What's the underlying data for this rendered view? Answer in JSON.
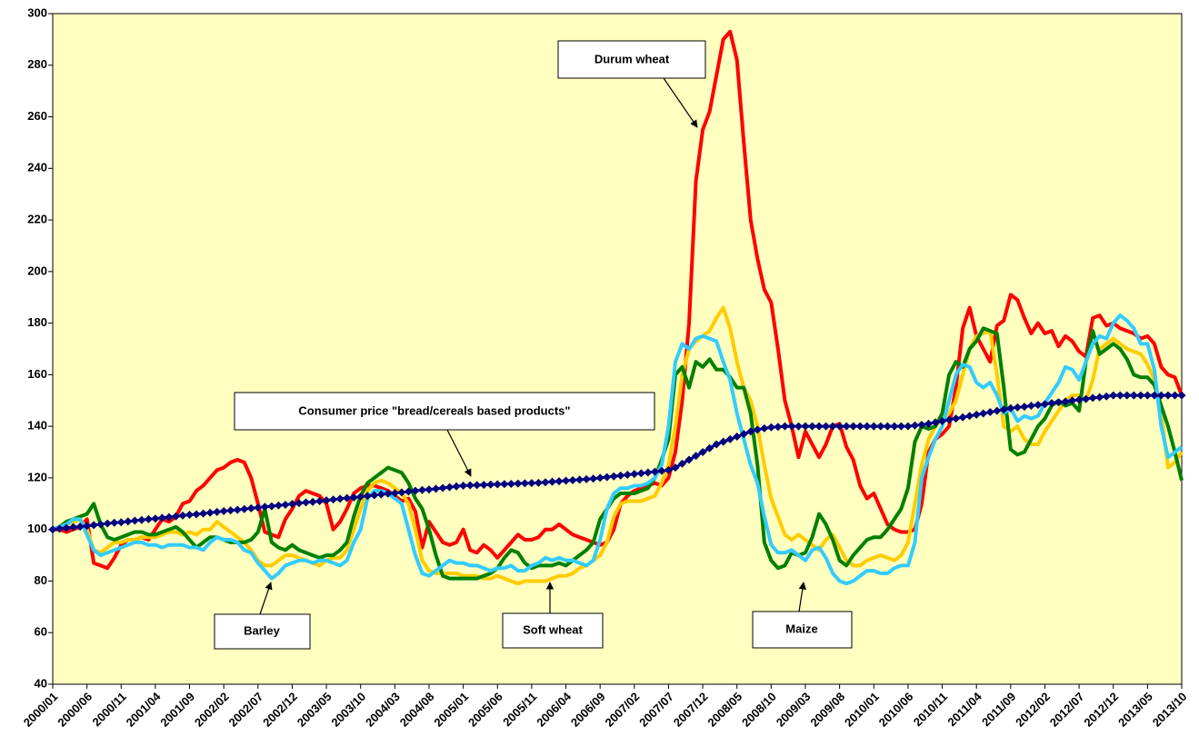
{
  "chart_data": {
    "type": "line",
    "categories": [
      "2000/01",
      null,
      null,
      null,
      null,
      "2000/06",
      null,
      null,
      null,
      null,
      "2000/11",
      null,
      null,
      null,
      null,
      "2001/04",
      null,
      null,
      null,
      null,
      "2001/09",
      null,
      null,
      null,
      null,
      "2002/02",
      null,
      null,
      null,
      null,
      "2002/07",
      null,
      null,
      null,
      null,
      "2002/12",
      null,
      null,
      null,
      null,
      "2003/05",
      null,
      null,
      null,
      null,
      "2003/10",
      null,
      null,
      null,
      null,
      "2004/03",
      null,
      null,
      null,
      null,
      "2004/08",
      null,
      null,
      null,
      null,
      "2005/01",
      null,
      null,
      null,
      null,
      "2005/06",
      null,
      null,
      null,
      null,
      "2005/11",
      null,
      null,
      null,
      null,
      "2006/04",
      null,
      null,
      null,
      null,
      "2006/09",
      null,
      null,
      null,
      null,
      "2007/02",
      null,
      null,
      null,
      null,
      "2007/07",
      null,
      null,
      null,
      null,
      "2007/12",
      null,
      null,
      null,
      null,
      "2008/05",
      null,
      null,
      null,
      null,
      "2008/10",
      null,
      null,
      null,
      null,
      "2009/03",
      null,
      null,
      null,
      null,
      "2009/08",
      null,
      null,
      null,
      null,
      "2010/01",
      null,
      null,
      null,
      null,
      "2010/06",
      null,
      null,
      null,
      null,
      "2010/11",
      null,
      null,
      null,
      null,
      "2011/04",
      null,
      null,
      null,
      null,
      "2011/09",
      null,
      null,
      null,
      null,
      "2012/02",
      null,
      null,
      null,
      null,
      "2012/07",
      null,
      null,
      null,
      null,
      "2012/12",
      null,
      null,
      null,
      null,
      "2013/05",
      null,
      null,
      null,
      null,
      "2013/10"
    ],
    "series": [
      {
        "name": "Durum wheat",
        "color": "#ff0000",
        "values": [
          100,
          100,
          99,
          100,
          101,
          104,
          87,
          86,
          85,
          89,
          94,
          96,
          96,
          97,
          96,
          100,
          104,
          103,
          105,
          110,
          111,
          115,
          117,
          120,
          123,
          124,
          126,
          127,
          126,
          120,
          110,
          99,
          98,
          97,
          104,
          108,
          113,
          115,
          114,
          113,
          110,
          100,
          103,
          108,
          114,
          116,
          117,
          117,
          116,
          115,
          113,
          111,
          112,
          107,
          93,
          103,
          99,
          95,
          94,
          95,
          100,
          92,
          91,
          94,
          92,
          89,
          92,
          95,
          98,
          96,
          96,
          97,
          100,
          100,
          102,
          100,
          98,
          97,
          96,
          95,
          94,
          95,
          100,
          110,
          113,
          115,
          116,
          117,
          118,
          117,
          120,
          130,
          150,
          180,
          235,
          255,
          262,
          276,
          290,
          293,
          282,
          250,
          220,
          205,
          193,
          188,
          170,
          150,
          140,
          128,
          138,
          133,
          128,
          133,
          140,
          141,
          132,
          127,
          117,
          112,
          114,
          108,
          102,
          100,
          99,
          99,
          100,
          110,
          130,
          135,
          137,
          140,
          155,
          178,
          186,
          175,
          170,
          165,
          179,
          181,
          191,
          189,
          182,
          176,
          180,
          176,
          177,
          171,
          175,
          173,
          169,
          167,
          182,
          183,
          179,
          180,
          178,
          177,
          176,
          174,
          175,
          172,
          163,
          160,
          159,
          152
        ]
      },
      {
        "name": "Soft wheat",
        "color": "#ffcc00",
        "values": [
          100,
          101,
          102,
          103,
          104,
          100,
          92,
          91,
          93,
          95,
          95,
          96,
          96,
          97,
          97,
          97,
          98,
          99,
          99,
          98,
          99,
          98,
          100,
          100,
          103,
          101,
          99,
          97,
          95,
          92,
          88,
          86,
          86,
          88,
          90,
          90,
          89,
          88,
          87,
          86,
          88,
          89,
          89,
          92,
          100,
          108,
          115,
          118,
          119,
          118,
          116,
          114,
          110,
          100,
          88,
          84,
          83,
          83,
          83,
          83,
          82,
          82,
          82,
          81,
          81,
          82,
          81,
          80,
          79,
          80,
          80,
          80,
          80,
          81,
          82,
          82,
          83,
          85,
          86,
          88,
          90,
          95,
          105,
          110,
          111,
          111,
          111,
          112,
          113,
          118,
          125,
          140,
          160,
          170,
          173,
          175,
          177,
          182,
          186,
          178,
          165,
          155,
          150,
          140,
          125,
          112,
          105,
          98,
          96,
          98,
          96,
          94,
          92,
          96,
          98,
          93,
          88,
          86,
          86,
          88,
          89,
          90,
          89,
          88,
          90,
          95,
          110,
          125,
          135,
          140,
          143,
          145,
          150,
          160,
          170,
          175,
          176,
          177,
          160,
          140,
          138,
          140,
          135,
          133,
          133,
          138,
          142,
          146,
          150,
          152,
          152,
          150,
          158,
          170,
          172,
          174,
          172,
          170,
          169,
          168,
          164,
          158,
          145,
          124,
          126,
          130
        ]
      },
      {
        "name": "Maize",
        "color": "#008000",
        "values": [
          100,
          101,
          103,
          104,
          105,
          106,
          110,
          102,
          97,
          96,
          97,
          98,
          99,
          99,
          98,
          98,
          99,
          100,
          101,
          99,
          96,
          93,
          95,
          97,
          97,
          96,
          95,
          95,
          95,
          96,
          99,
          108,
          95,
          93,
          92,
          94,
          92,
          91,
          90,
          89,
          90,
          90,
          92,
          95,
          105,
          113,
          118,
          120,
          122,
          124,
          123,
          122,
          118,
          112,
          108,
          100,
          90,
          82,
          81,
          81,
          81,
          81,
          81,
          82,
          83,
          85,
          89,
          92,
          91,
          87,
          85,
          86,
          86,
          86,
          87,
          86,
          88,
          90,
          92,
          95,
          104,
          108,
          112,
          114,
          114,
          114,
          115,
          116,
          120,
          127,
          135,
          160,
          163,
          155,
          165,
          163,
          166,
          162,
          162,
          159,
          155,
          155,
          145,
          125,
          95,
          88,
          85,
          86,
          91,
          90,
          91,
          97,
          106,
          102,
          96,
          88,
          86,
          90,
          93,
          96,
          97,
          97,
          100,
          104,
          108,
          116,
          134,
          140,
          139,
          140,
          145,
          160,
          165,
          163,
          170,
          173,
          178,
          177,
          176,
          155,
          131,
          129,
          130,
          135,
          140,
          143,
          148,
          150,
          148,
          149,
          146,
          165,
          177,
          168,
          170,
          172,
          170,
          166,
          160,
          159,
          159,
          156,
          148,
          140,
          130,
          119
        ]
      },
      {
        "name": "Barley",
        "color": "#33ccff",
        "values": [
          100,
          101,
          102,
          104,
          104,
          98,
          92,
          90,
          91,
          92,
          93,
          94,
          95,
          95,
          94,
          94,
          93,
          94,
          94,
          94,
          93,
          93,
          92,
          95,
          97,
          96,
          96,
          95,
          92,
          91,
          87,
          84,
          81,
          83,
          86,
          87,
          88,
          88,
          87,
          88,
          88,
          87,
          86,
          88,
          95,
          100,
          112,
          115,
          115,
          114,
          112,
          110,
          100,
          90,
          83,
          82,
          84,
          86,
          88,
          87,
          87,
          86,
          86,
          85,
          84,
          85,
          85,
          86,
          84,
          84,
          86,
          87,
          89,
          88,
          89,
          88,
          88,
          87,
          86,
          88,
          96,
          108,
          114,
          116,
          116,
          117,
          117,
          118,
          120,
          125,
          140,
          165,
          172,
          170,
          174,
          175,
          174,
          173,
          165,
          158,
          145,
          135,
          125,
          118,
          105,
          94,
          91,
          91,
          92,
          90,
          88,
          92,
          93,
          89,
          83,
          80,
          79,
          80,
          82,
          84,
          84,
          83,
          83,
          85,
          86,
          86,
          95,
          120,
          128,
          135,
          140,
          150,
          160,
          164,
          163,
          157,
          155,
          157,
          152,
          145,
          147,
          142,
          144,
          143,
          144,
          149,
          153,
          157,
          163,
          162,
          158,
          165,
          172,
          175,
          174,
          180,
          183,
          181,
          178,
          172,
          172,
          162,
          140,
          128,
          130,
          132
        ]
      },
      {
        "name": "Consumer price \"bread/cereals based products\"",
        "color": "#000080",
        "marker": "diamond",
        "values": [
          100,
          100.3,
          100.6,
          100.9,
          101.1,
          101.4,
          101.7,
          102,
          102.3,
          102.6,
          102.8,
          103.1,
          103.4,
          103.7,
          104,
          104.2,
          104.5,
          104.8,
          105.1,
          105.4,
          105.7,
          105.9,
          106.2,
          106.5,
          106.8,
          107.1,
          107.4,
          107.6,
          107.9,
          108.2,
          108.5,
          108.8,
          109,
          109.3,
          109.6,
          109.9,
          110.2,
          110.5,
          110.7,
          111,
          111.3,
          111.6,
          111.9,
          112.2,
          112.4,
          112.7,
          113,
          113.3,
          113.6,
          113.9,
          114.1,
          114.4,
          114.7,
          115,
          115.3,
          115.5,
          115.8,
          116.1,
          116.4,
          116.7,
          117,
          117.1,
          117.2,
          117.3,
          117.4,
          117.5,
          117.6,
          117.7,
          117.8,
          117.9,
          118,
          118.1,
          118.3,
          118.5,
          118.7,
          118.9,
          119.1,
          119.3,
          119.5,
          119.7,
          120,
          120.3,
          120.6,
          120.9,
          121.2,
          121.5,
          121.8,
          122.1,
          122.4,
          122.7,
          123,
          124,
          125.5,
          127,
          128.5,
          130,
          131.5,
          133,
          134,
          135,
          136,
          137,
          138,
          138.7,
          139.2,
          139.6,
          139.8,
          140,
          140,
          140,
          140,
          140,
          140,
          140,
          140,
          140,
          140,
          140,
          140,
          140,
          140,
          140,
          140,
          140,
          140,
          140,
          140.3,
          140.6,
          141,
          141.5,
          142,
          142.5,
          143,
          143.5,
          144,
          144.5,
          145,
          145.5,
          146,
          146.5,
          147,
          147.3,
          147.6,
          148,
          148.3,
          148.6,
          149,
          149.3,
          149.6,
          150,
          150.3,
          150.6,
          151,
          151.3,
          151.6,
          152,
          152,
          152,
          152,
          152,
          152,
          152,
          152,
          152,
          152,
          152
        ]
      }
    ],
    "ylim": [
      40,
      300
    ],
    "yticks": [
      40,
      60,
      80,
      100,
      120,
      140,
      160,
      180,
      200,
      220,
      240,
      260,
      280,
      300
    ],
    "grid": false,
    "plot_background": "#ffffc0"
  }
}
